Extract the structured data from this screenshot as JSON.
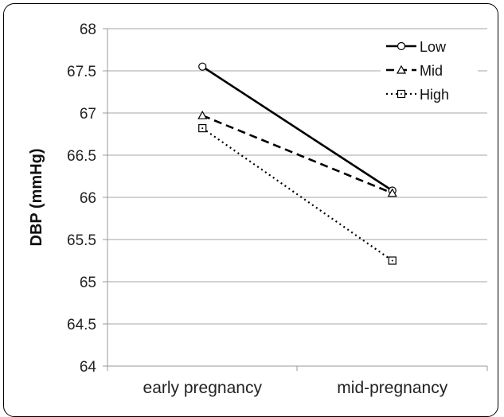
{
  "chart_data": {
    "type": "line",
    "title": "",
    "xlabel": "",
    "ylabel": "DBP (mmHg)",
    "categories": [
      "early pregnancy",
      "mid-pregnancy"
    ],
    "ylim": [
      64,
      68
    ],
    "yticks": [
      "64",
      "64.5",
      "65",
      "65.5",
      "66",
      "66.5",
      "67",
      "67.5",
      "68"
    ],
    "grid": true,
    "legend_position": "top-right",
    "series": [
      {
        "name": "Low",
        "values": [
          67.55,
          66.08
        ],
        "line_style": "solid",
        "marker": "circle",
        "color": "#000000"
      },
      {
        "name": "Mid",
        "values": [
          66.97,
          66.05
        ],
        "line_style": "dashed",
        "marker": "triangle",
        "color": "#000000"
      },
      {
        "name": "High",
        "values": [
          66.82,
          65.25
        ],
        "line_style": "dotted",
        "marker": "square",
        "color": "#000000"
      }
    ]
  }
}
